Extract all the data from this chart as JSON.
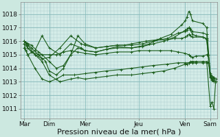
{
  "background_color": "#cce8e0",
  "plot_bg_color": "#d4ece8",
  "line_color": "#1a5c1a",
  "grid_color_major": "#88bbbb",
  "grid_color_minor": "#aacccc",
  "xlabel": "Pression niveau de la mer( hPa )",
  "xlabel_fontsize": 8,
  "yticks": [
    1011,
    1012,
    1013,
    1014,
    1015,
    1016,
    1017,
    1018
  ],
  "ylim": [
    1010.3,
    1018.9
  ],
  "xtick_labels": [
    "Mar",
    "Dim",
    "Mer",
    "Jeu",
    "Ven",
    "Sam"
  ],
  "xtick_positions": [
    0,
    0.7,
    1.7,
    3.2,
    4.5,
    5.2
  ],
  "xlim": [
    -0.1,
    5.4
  ],
  "series": [
    {
      "x": [
        0.0,
        0.05,
        0.1,
        0.2,
        0.4,
        0.7,
        0.9,
        1.1,
        1.3,
        1.5,
        1.7,
        2.0,
        2.3,
        2.6,
        3.0,
        3.2,
        3.5,
        3.8,
        4.1,
        4.3,
        4.5,
        4.6,
        4.65,
        4.7,
        4.8,
        5.0,
        5.1,
        5.15,
        5.2,
        5.25,
        5.3
      ],
      "y": [
        1016.0,
        1015.8,
        1015.5,
        1015.2,
        1015.0,
        1015.0,
        1015.0,
        1015.2,
        1015.3,
        1015.2,
        1015.1,
        1015.0,
        1015.1,
        1015.2,
        1015.2,
        1015.3,
        1015.3,
        1015.3,
        1015.3,
        1015.2,
        1015.1,
        1015.0,
        1014.9,
        1014.8,
        1014.9,
        1014.9,
        1015.0,
        1015.0,
        1013.3,
        1013.2,
        1013.1
      ]
    },
    {
      "x": [
        0.0,
        0.05,
        0.1,
        0.3,
        0.5,
        0.7,
        0.9,
        1.1,
        1.4,
        1.7,
        2.0,
        2.3,
        2.7,
        3.0,
        3.3,
        3.6,
        4.0,
        4.3,
        4.5,
        4.6,
        4.7,
        4.8,
        5.0,
        5.1,
        5.15,
        5.2,
        5.28,
        5.35
      ],
      "y": [
        1015.8,
        1015.3,
        1015.0,
        1014.0,
        1013.2,
        1013.0,
        1013.2,
        1013.5,
        1013.5,
        1013.6,
        1013.7,
        1013.8,
        1013.9,
        1014.0,
        1014.1,
        1014.2,
        1014.3,
        1014.4,
        1014.4,
        1014.4,
        1014.4,
        1014.4,
        1014.4,
        1014.4,
        1014.4,
        1013.5,
        1013.3,
        1013.2
      ]
    },
    {
      "x": [
        0.0,
        0.1,
        0.3,
        0.5,
        0.7,
        1.0,
        1.3,
        1.6,
        1.7,
        2.0,
        2.3,
        2.6,
        2.8,
        3.0,
        3.2,
        3.4,
        3.7,
        4.0,
        4.2,
        4.4,
        4.5,
        4.55,
        4.6,
        4.65,
        4.7,
        5.0,
        5.1,
        5.2,
        5.3,
        5.35
      ],
      "y": [
        1016.0,
        1015.7,
        1015.0,
        1014.7,
        1014.8,
        1015.5,
        1016.4,
        1015.8,
        1015.7,
        1015.5,
        1015.6,
        1015.7,
        1015.7,
        1015.8,
        1015.9,
        1016.0,
        1016.1,
        1016.1,
        1016.2,
        1016.2,
        1016.3,
        1016.4,
        1016.5,
        1016.4,
        1016.3,
        1016.3,
        1016.2,
        1013.4,
        1013.2,
        1013.0
      ]
    },
    {
      "x": [
        0.0,
        0.1,
        0.3,
        0.5,
        0.7,
        1.0,
        1.3,
        1.6,
        1.7,
        2.0,
        2.3,
        2.6,
        3.0,
        3.2,
        3.5,
        3.8,
        4.1,
        4.4,
        4.5,
        4.55,
        4.6,
        4.65,
        4.7,
        5.0,
        5.1,
        5.2,
        5.3
      ],
      "y": [
        1015.5,
        1015.0,
        1015.3,
        1016.4,
        1015.5,
        1015.0,
        1015.8,
        1015.5,
        1015.3,
        1015.2,
        1015.4,
        1015.6,
        1015.5,
        1015.6,
        1015.8,
        1016.2,
        1016.5,
        1017.2,
        1017.5,
        1017.8,
        1018.2,
        1018.0,
        1017.5,
        1017.3,
        1017.0,
        1013.6,
        1013.3
      ]
    },
    {
      "x": [
        0.0,
        0.1,
        0.2,
        0.4,
        0.6,
        0.7,
        0.9,
        1.1,
        1.3,
        1.5,
        1.7,
        2.0,
        2.3,
        2.6,
        3.0,
        3.3,
        3.6,
        3.9,
        4.2,
        4.5,
        4.55,
        4.6,
        4.65,
        4.7,
        4.8,
        5.0,
        5.1,
        5.2,
        5.25,
        5.3
      ],
      "y": [
        1016.0,
        1015.8,
        1015.5,
        1015.0,
        1014.5,
        1013.8,
        1013.5,
        1014.0,
        1015.0,
        1015.5,
        1015.3,
        1015.2,
        1015.4,
        1015.5,
        1015.5,
        1015.6,
        1015.8,
        1016.0,
        1016.3,
        1016.8,
        1016.9,
        1017.0,
        1016.8,
        1016.5,
        1016.4,
        1016.3,
        1016.1,
        1013.3,
        1013.1,
        1013.0
      ]
    },
    {
      "x": [
        0.0,
        0.1,
        0.3,
        0.5,
        0.7,
        1.0,
        1.3,
        1.5,
        1.7,
        2.0,
        2.3,
        2.6,
        3.0,
        3.3,
        3.6,
        3.9,
        4.2,
        4.5,
        4.55,
        4.6,
        4.65,
        4.7,
        4.8,
        5.0,
        5.1,
        5.2,
        5.25,
        5.3,
        5.35
      ],
      "y": [
        1015.8,
        1015.5,
        1015.0,
        1014.5,
        1013.5,
        1013.0,
        1013.2,
        1013.3,
        1013.2,
        1013.3,
        1013.4,
        1013.5,
        1013.5,
        1013.6,
        1013.7,
        1013.8,
        1014.0,
        1014.3,
        1014.3,
        1014.4,
        1014.5,
        1014.5,
        1014.5,
        1014.5,
        1014.5,
        1011.2,
        1011.5,
        1011.0,
        1013.0
      ]
    },
    {
      "x": [
        0.0,
        0.2,
        0.4,
        0.5,
        0.7,
        0.9,
        1.1,
        1.3,
        1.5,
        1.7,
        2.0,
        2.3,
        2.6,
        3.0,
        3.3,
        3.6,
        4.0,
        4.3,
        4.5,
        4.55,
        4.6,
        4.65,
        4.7,
        5.0,
        5.1,
        5.2,
        5.25,
        5.3
      ],
      "y": [
        1016.0,
        1015.7,
        1015.2,
        1015.0,
        1014.5,
        1014.0,
        1014.2,
        1015.0,
        1016.4,
        1015.8,
        1015.5,
        1015.6,
        1015.7,
        1015.7,
        1015.8,
        1016.0,
        1016.2,
        1016.6,
        1016.7,
        1016.8,
        1017.0,
        1016.9,
        1016.7,
        1016.6,
        1016.5,
        1013.5,
        1013.2,
        1013.0
      ]
    }
  ]
}
